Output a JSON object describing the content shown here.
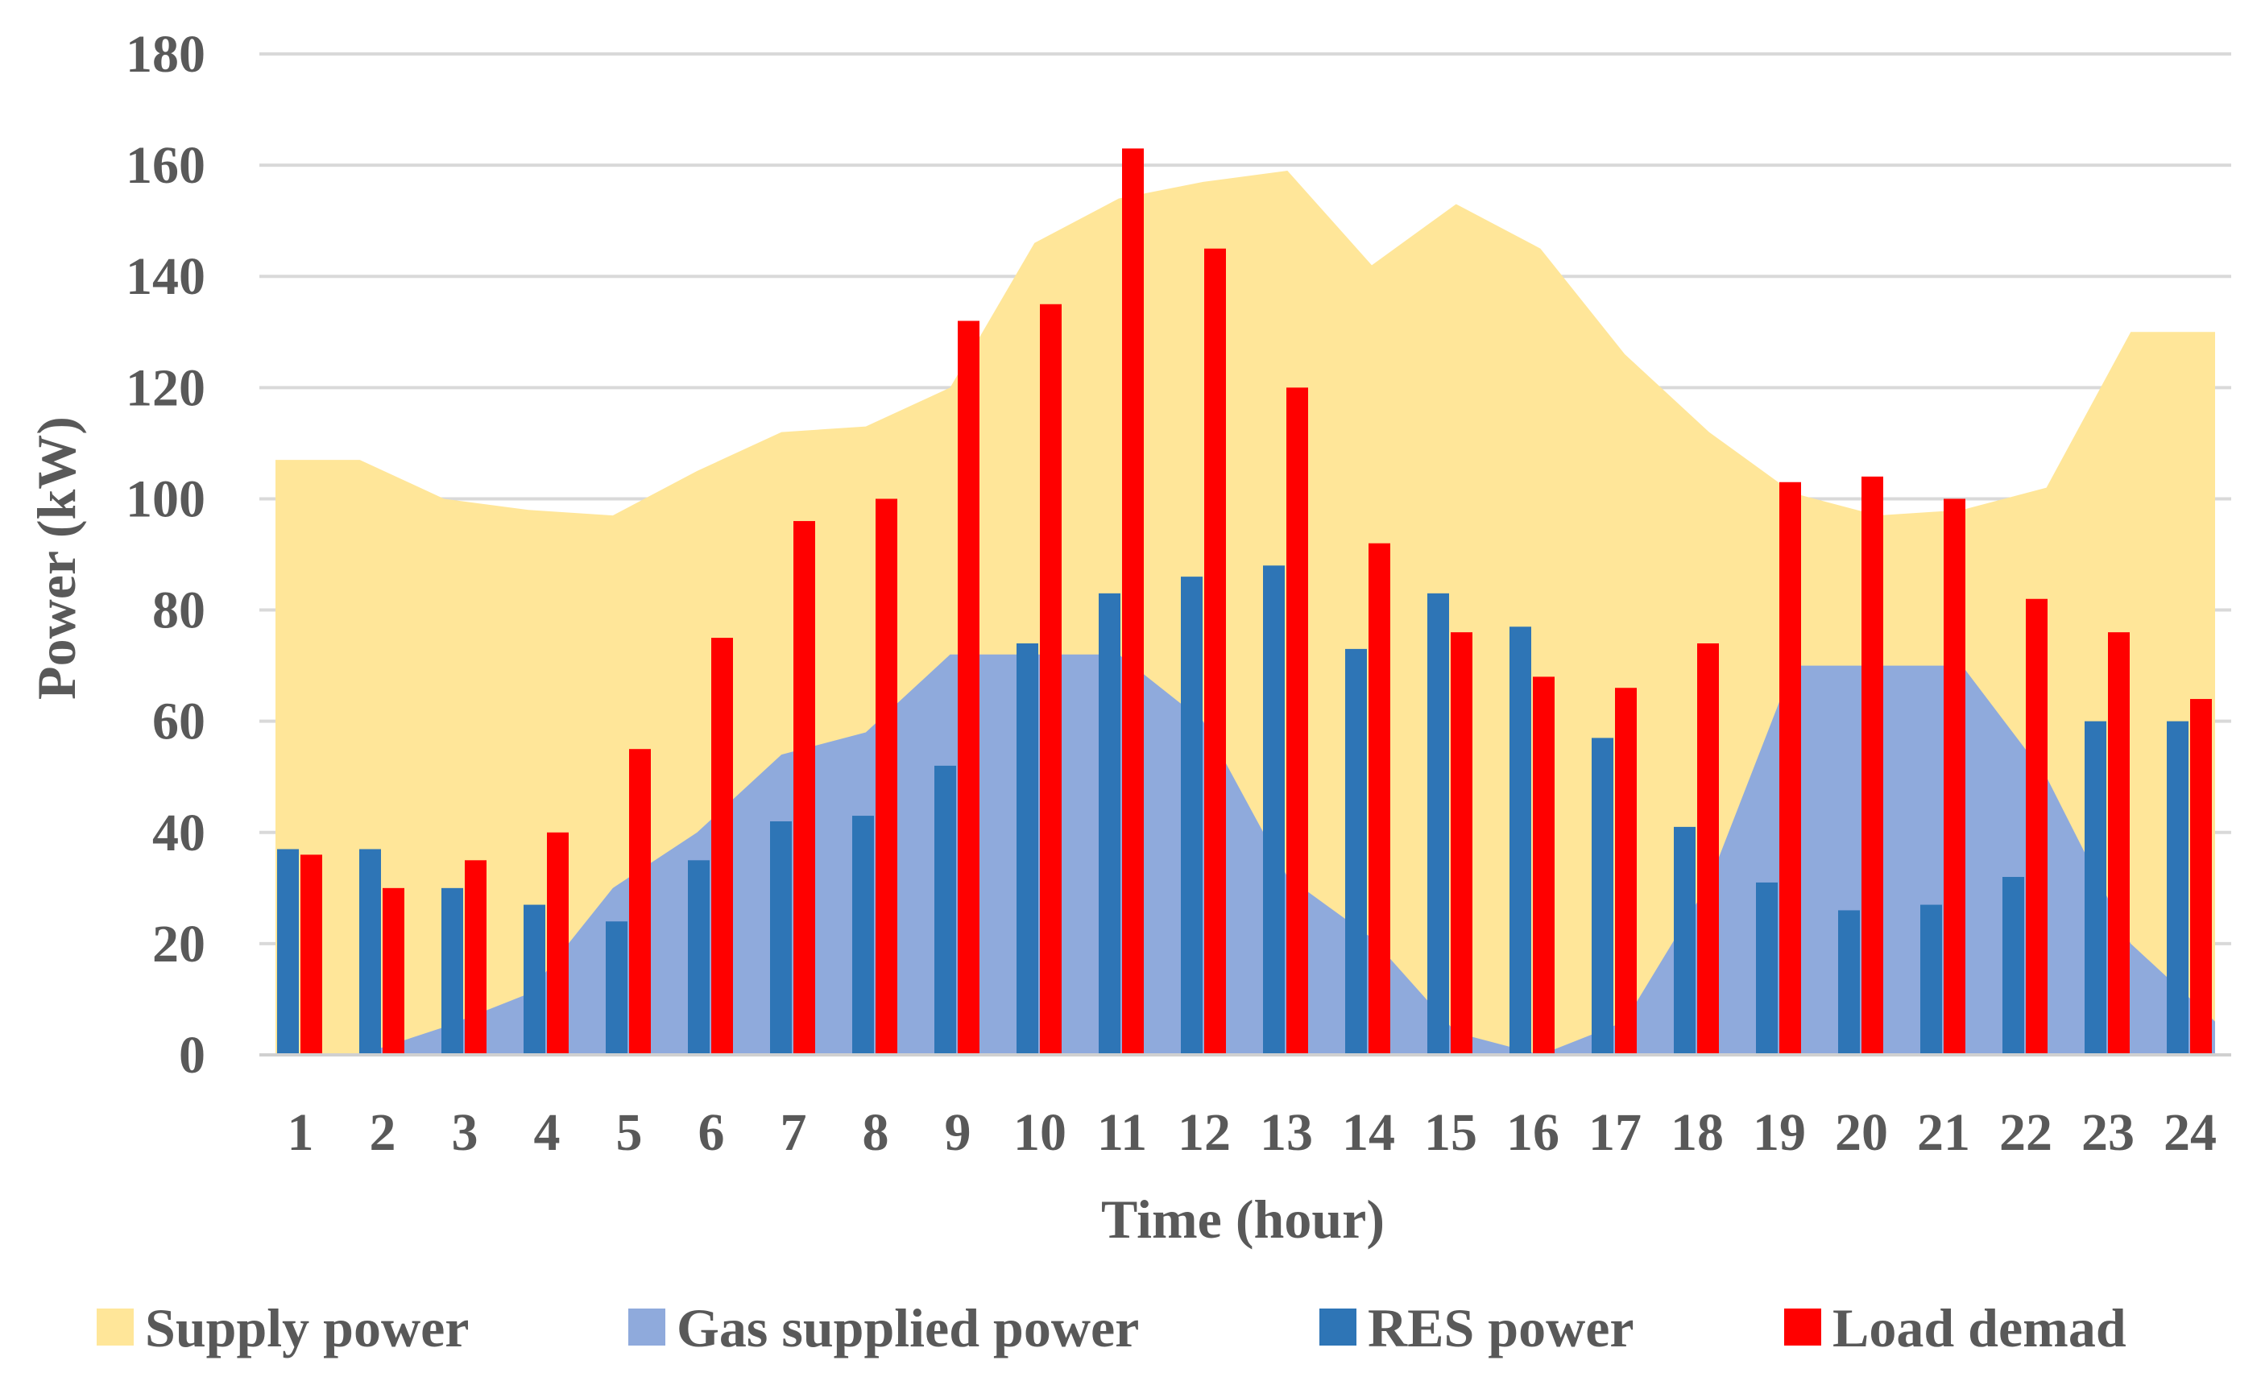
{
  "chart_data": {
    "type": "bar",
    "title": "",
    "xlabel": "Time (hour)",
    "ylabel": "Power (kW)",
    "ylim": [
      0,
      180
    ],
    "yticks": [
      0,
      20,
      40,
      60,
      80,
      100,
      120,
      140,
      160,
      180
    ],
    "grid": true,
    "legend_position": "bottom",
    "categories": [
      "1",
      "2",
      "3",
      "4",
      "5",
      "6",
      "7",
      "8",
      "9",
      "10",
      "11",
      "12",
      "13",
      "14",
      "15",
      "16",
      "17",
      "18",
      "19",
      "20",
      "21",
      "22",
      "23",
      "24"
    ],
    "series": [
      {
        "name": "Supply power",
        "kind": "area",
        "color": "#FFE699",
        "values": [
          107,
          107,
          100,
          98,
          97,
          105,
          112,
          113,
          120,
          146,
          154,
          157,
          159,
          142,
          153,
          145,
          126,
          112,
          101,
          97,
          98,
          102,
          130,
          130
        ]
      },
      {
        "name": "Gas supplied power",
        "kind": "area",
        "color": "#8FAADC",
        "values": [
          0,
          0,
          5,
          11,
          30,
          40,
          54,
          58,
          72,
          72,
          72,
          60,
          32,
          21,
          4,
          0,
          6,
          31,
          70,
          70,
          70,
          50,
          20,
          6
        ]
      },
      {
        "name": "RES power",
        "kind": "bar",
        "color": "#2E75B6",
        "values": [
          37,
          37,
          30,
          27,
          24,
          35,
          42,
          43,
          52,
          74,
          83,
          86,
          88,
          73,
          83,
          77,
          57,
          41,
          31,
          26,
          27,
          32,
          60,
          60
        ]
      },
      {
        "name": "Load demad",
        "kind": "bar",
        "color": "#FF0000",
        "values": [
          36,
          30,
          35,
          40,
          55,
          75,
          96,
          100,
          132,
          135,
          163,
          145,
          120,
          92,
          76,
          68,
          66,
          74,
          103,
          104,
          100,
          82,
          76,
          64
        ]
      }
    ]
  }
}
